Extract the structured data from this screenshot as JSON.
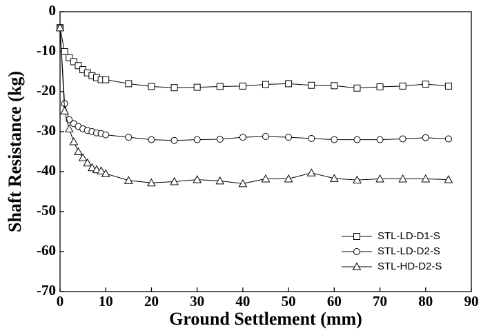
{
  "chart_data": {
    "type": "line",
    "x_label": "Ground Settlement (mm)",
    "y_label": "Shaft Resistance (kg)",
    "x": [
      0,
      1,
      2,
      3,
      4,
      5,
      6,
      7,
      8,
      9,
      10,
      15,
      20,
      25,
      30,
      35,
      40,
      45,
      50,
      55,
      60,
      65,
      70,
      75,
      80,
      85
    ],
    "series": [
      {
        "name": "STL-LD-D1-S",
        "color": "#000000",
        "marker": "square",
        "values": [
          -4,
          -10,
          -11.5,
          -12.5,
          -13.5,
          -14.5,
          -15.3,
          -16,
          -16.5,
          -17,
          -17,
          -18,
          -18.7,
          -19,
          -18.9,
          -18.7,
          -18.6,
          -18.2,
          -18,
          -18.4,
          -18.5,
          -19.1,
          -18.8,
          -18.6,
          -18.1,
          -18.6
        ]
      },
      {
        "name": "STL-LD-D2-S",
        "color": "#000000",
        "marker": "circle",
        "values": [
          -4,
          -23,
          -27,
          -28,
          -28.7,
          -29.3,
          -29.7,
          -30,
          -30.3,
          -30.5,
          -30.8,
          -31.4,
          -32,
          -32.2,
          -32,
          -31.9,
          -31.4,
          -31.2,
          -31.4,
          -31.7,
          -32,
          -32,
          -32,
          -31.8,
          -31.5,
          -31.8
        ]
      },
      {
        "name": "STL-HD-D2-S",
        "color": "#000000",
        "marker": "triangle",
        "values": [
          -4,
          -24.8,
          -29.3,
          -32.5,
          -35,
          -36.5,
          -37.8,
          -39,
          -39.5,
          -39.8,
          -40.5,
          -42.2,
          -42.8,
          -42.5,
          -42,
          -42.3,
          -43,
          -41.8,
          -41.8,
          -40.3,
          -41.7,
          -42.1,
          -41.8,
          -41.8,
          -41.8,
          -42
        ]
      }
    ],
    "xlim": [
      0,
      90
    ],
    "xticks": [
      0,
      10,
      20,
      30,
      40,
      50,
      60,
      70,
      80,
      90
    ],
    "ylim": [
      -70,
      0
    ],
    "yticks": [
      0,
      -10,
      -20,
      -30,
      -40,
      -50,
      -60,
      -70
    ],
    "legend": "lower right",
    "grid": false
  }
}
